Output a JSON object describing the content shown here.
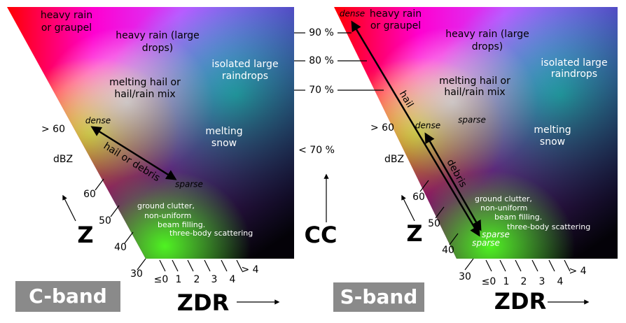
{
  "panels": [
    {
      "band": "C-band",
      "regions": {
        "heavy_rain_graupel": [
          "heavy rain",
          "or graupel"
        ],
        "heavy_rain_large": [
          "heavy rain (large",
          "drops)"
        ],
        "isolated": [
          "isolated large",
          "raindrops"
        ],
        "melting_hail": [
          "melting hail or",
          "hail/rain mix"
        ],
        "melting_snow": [
          "melting",
          "snow"
        ],
        "ground_clutter": [
          "ground clutter,",
          "non-uniform",
          "beam filling.",
          "three-body scattering"
        ]
      },
      "arrow_labels": {
        "dense": "dense",
        "sparse": "sparse",
        "name": "hail or debris"
      },
      "z_ticks": [
        "30",
        "40",
        "50",
        "60",
        "> 60"
      ],
      "z_unit": "dBZ",
      "z_axis": "Z",
      "zdr_ticks": [
        "≤0",
        "1",
        "2",
        "3",
        "4",
        "> 4"
      ],
      "zdr_axis": "ZDR"
    },
    {
      "band": "S-band",
      "regions": {
        "heavy_rain_graupel": [
          "heavy rain",
          "or graupel"
        ],
        "heavy_rain_large": [
          "heavy rain (large",
          "drops)"
        ],
        "isolated": [
          "isolated large",
          "raindrops"
        ],
        "melting_hail": [
          "melting hail or",
          "hail/rain mix"
        ],
        "melting_snow": [
          "melting",
          "snow"
        ],
        "ground_clutter": [
          "ground clutter,",
          "non-uniform",
          "beam filling.",
          "three-body scattering"
        ]
      },
      "arrow_labels": {
        "hail_dense": "dense",
        "hail_sparse": "sparse",
        "hail_name": "hail",
        "debris_dense": "dense",
        "debris_sparse": "sparse",
        "debris_name": "debris",
        "upper_sparse": "sparse"
      },
      "z_ticks": [
        "30",
        "40",
        "50",
        "60",
        "> 60"
      ],
      "z_unit": "dBZ",
      "z_axis": "Z",
      "zdr_ticks": [
        "≤0",
        "1",
        "2",
        "3",
        "4",
        "> 4"
      ],
      "zdr_axis": "ZDR"
    }
  ],
  "cc": {
    "ticks": [
      "90 %",
      "80 %",
      "70 %",
      "< 70 %"
    ],
    "axis": "CC"
  }
}
